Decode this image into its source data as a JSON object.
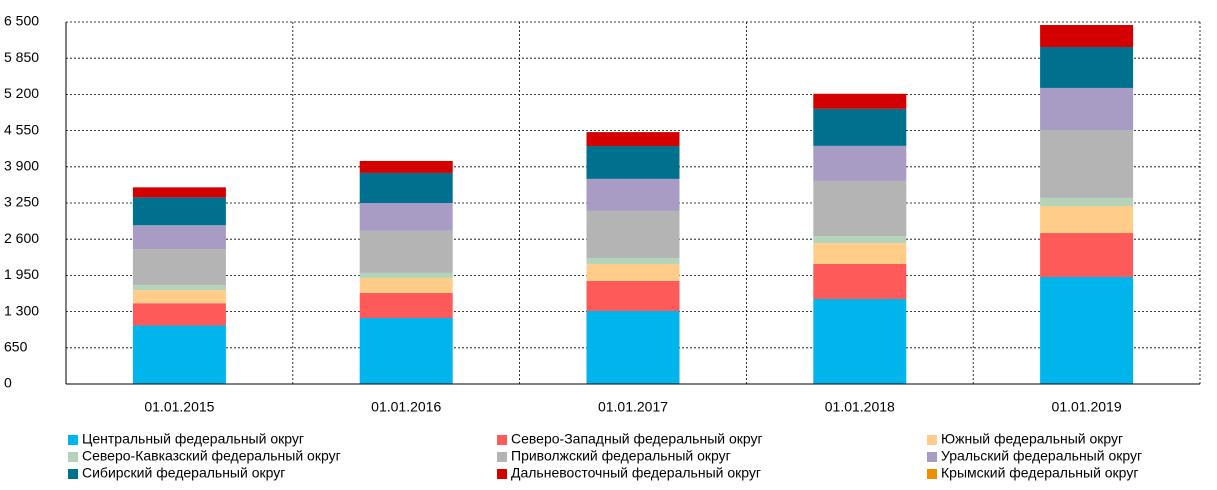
{
  "chart_data": {
    "type": "stacked_bar",
    "categories": [
      "01.01.2015",
      "01.01.2016",
      "01.01.2017",
      "01.01.2018",
      "01.01.2019"
    ],
    "series": [
      {
        "name": "Центральный федеральный округ",
        "color": "#00b5ec",
        "values": [
          1050,
          1185,
          1311,
          1526,
          1921
        ]
      },
      {
        "name": "Северо-Западный федеральный округ",
        "color": "#ff5a5a",
        "values": [
          400,
          450,
          540,
          630,
          790
        ]
      },
      {
        "name": "Южный федеральный округ",
        "color": "#ffcc8a",
        "values": [
          235,
          270,
          305,
          375,
          485
        ]
      },
      {
        "name": "Северо-Кавказский федеральный округ",
        "color": "#b3d4b8",
        "values": [
          90,
          90,
          107,
          125,
          145
        ]
      },
      {
        "name": "Приволжский федеральный округ",
        "color": "#b4b4b4",
        "values": [
          646,
          755,
          845,
          990,
          1220
        ]
      },
      {
        "name": "Уральский федеральный округ",
        "color": "#a89cc4",
        "values": [
          430,
          500,
          575,
          630,
          755
        ]
      },
      {
        "name": "Сибирский федеральный округ",
        "color": "#00708f",
        "values": [
          500,
          540,
          590,
          665,
          735
        ]
      },
      {
        "name": "Дальневосточный федеральный округ",
        "color": "#d40000",
        "values": [
          180,
          215,
          250,
          270,
          395
        ]
      },
      {
        "name": "Крымский федеральный округ",
        "color": "#f08c00",
        "values": [
          0,
          0,
          0,
          0,
          0
        ]
      }
    ],
    "ylim": [
      0,
      6500
    ],
    "yticks": [
      0,
      650,
      {
        "value": 1300,
        "label": "1 300"
      },
      {
        "value": 1950,
        "label": "1 950"
      },
      {
        "value": 2600,
        "label": "2 600"
      },
      {
        "value": 3250,
        "label": "3 250"
      },
      {
        "value": 3900,
        "label": "3 900"
      },
      {
        "value": 4550,
        "label": "4 550"
      },
      {
        "value": 5200,
        "label": "5 200"
      },
      {
        "value": 5850,
        "label": "5 850"
      },
      {
        "value": 6500,
        "label": "6 500"
      }
    ],
    "grid": true
  }
}
